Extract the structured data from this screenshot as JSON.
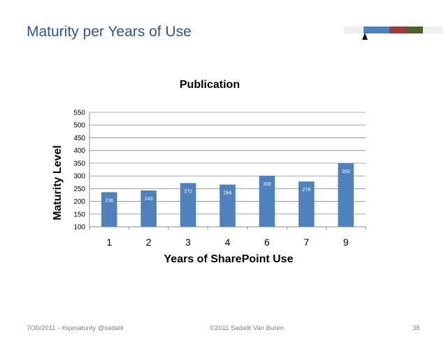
{
  "slide": {
    "title": "Maturity per Years of Use",
    "accent_colors": [
      "#eeeeee",
      "#4f81bd",
      "#9b3b3b",
      "#4f6228",
      "#eeeeee"
    ]
  },
  "footer": {
    "left": "7/30/2011 - #spmaturity @sadalit",
    "center": "©2011 Sadalit Van Buren",
    "page_number": "38"
  },
  "chart_data": {
    "type": "bar",
    "title": "Publication",
    "xlabel": "Years of SharePoint Use",
    "ylabel": "Maturity Level",
    "categories": [
      "1",
      "2",
      "3",
      "4",
      "6",
      "7",
      "9"
    ],
    "values": [
      236,
      243,
      272,
      266,
      300,
      278,
      350
    ],
    "ylim": [
      100,
      550
    ],
    "yticks": [
      100,
      150,
      200,
      250,
      300,
      350,
      400,
      450,
      500,
      550
    ],
    "grid": true,
    "legend": "none",
    "bar_color": "#4f81bd"
  }
}
